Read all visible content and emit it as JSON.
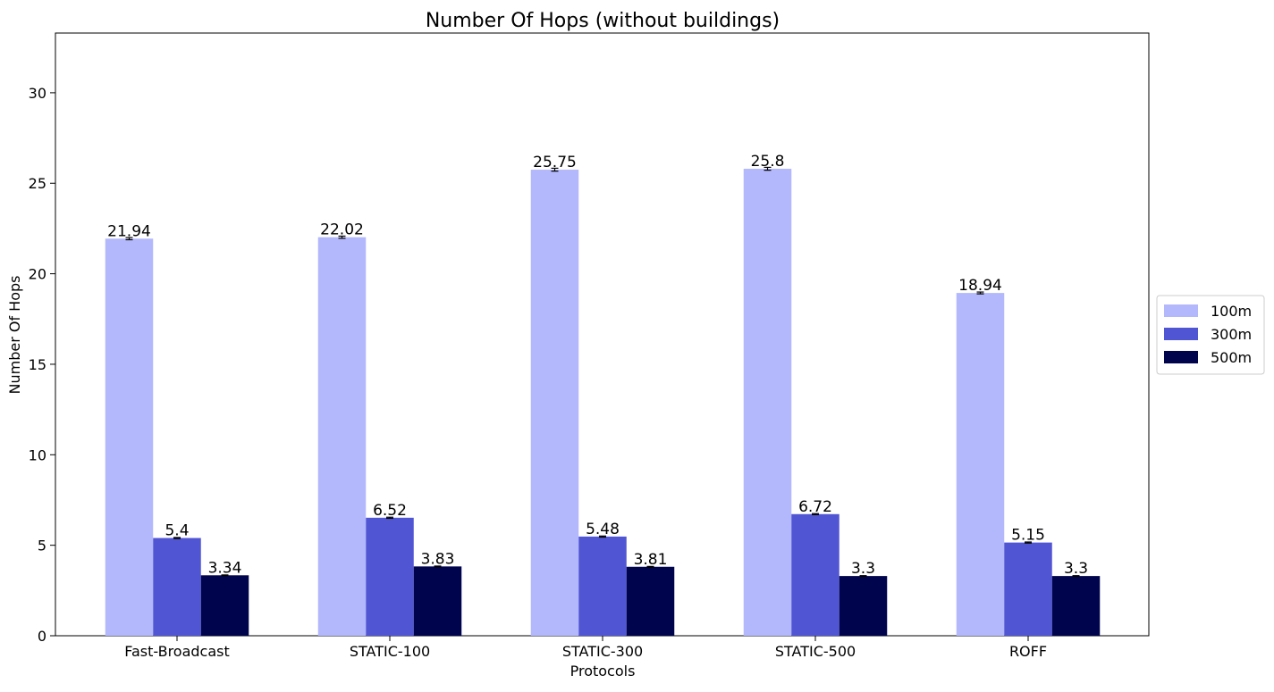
{
  "chart_data": {
    "type": "bar",
    "title": "Number Of Hops (without buildings)",
    "xlabel": "Protocols",
    "ylabel": "Number Of Hops",
    "categories": [
      "Fast-Broadcast",
      "STATIC-100",
      "STATIC-300",
      "STATIC-500",
      "ROFF"
    ],
    "yticks": [
      "0",
      "5",
      "10",
      "15",
      "20",
      "25",
      "30"
    ],
    "ylim": [
      0,
      33.3
    ],
    "grid": false,
    "legend_position": "right",
    "error_bars": true,
    "series": [
      {
        "name": "100m",
        "color": "#b3b8fc",
        "values": [
          21.94,
          22.02,
          25.75,
          25.8,
          18.94
        ],
        "labels": [
          "21.94",
          "22.02",
          "25.75",
          "25.8",
          "18.94"
        ],
        "errors": [
          0.06,
          0.06,
          0.08,
          0.08,
          0.05
        ]
      },
      {
        "name": "300m",
        "color": "#5055d4",
        "values": [
          5.4,
          6.52,
          5.48,
          6.72,
          5.15
        ],
        "labels": [
          "5.4",
          "6.52",
          "5.48",
          "6.72",
          "5.15"
        ],
        "errors": [
          0.03,
          0.03,
          0.03,
          0.03,
          0.03
        ]
      },
      {
        "name": "500m",
        "color": "#00044d",
        "values": [
          3.34,
          3.83,
          3.81,
          3.3,
          3.3
        ],
        "labels": [
          "3.34",
          "3.83",
          "3.81",
          "3.3",
          "3.3"
        ],
        "errors": [
          0.02,
          0.02,
          0.02,
          0.02,
          0.02
        ]
      }
    ]
  }
}
